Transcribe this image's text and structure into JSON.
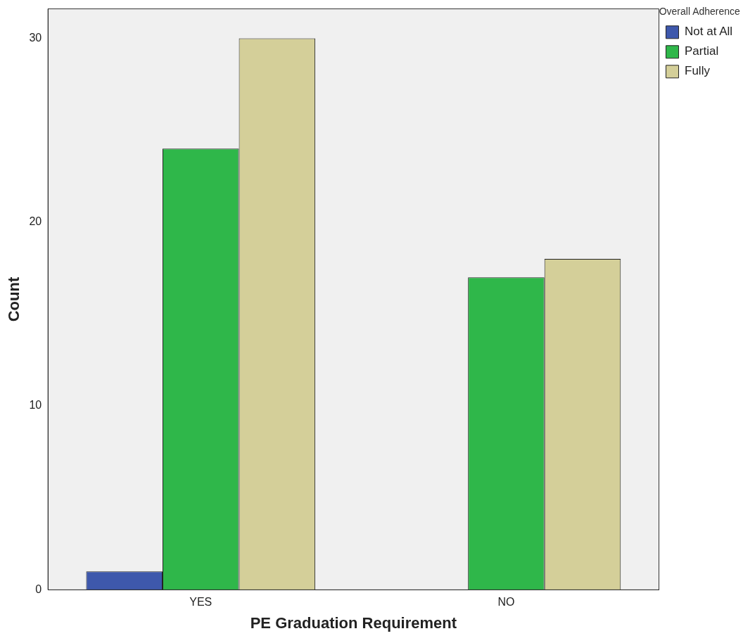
{
  "chart_data": {
    "type": "bar",
    "xlabel": "PE Graduation Requirement",
    "ylabel": "Count",
    "legend_title": "Overall Adherence",
    "categories": [
      "YES",
      "NO"
    ],
    "series": [
      {
        "name": "Not at All",
        "color": "#3e58ac",
        "values": [
          1,
          null
        ]
      },
      {
        "name": "Partial",
        "color": "#2fb74a",
        "values": [
          24,
          17
        ]
      },
      {
        "name": "Fully",
        "color": "#d4cf99",
        "values": [
          30,
          18
        ]
      }
    ],
    "ylim": [
      0,
      31.6
    ],
    "yticks": [
      0,
      10,
      20,
      30
    ],
    "grid": false,
    "legend": "top right"
  }
}
